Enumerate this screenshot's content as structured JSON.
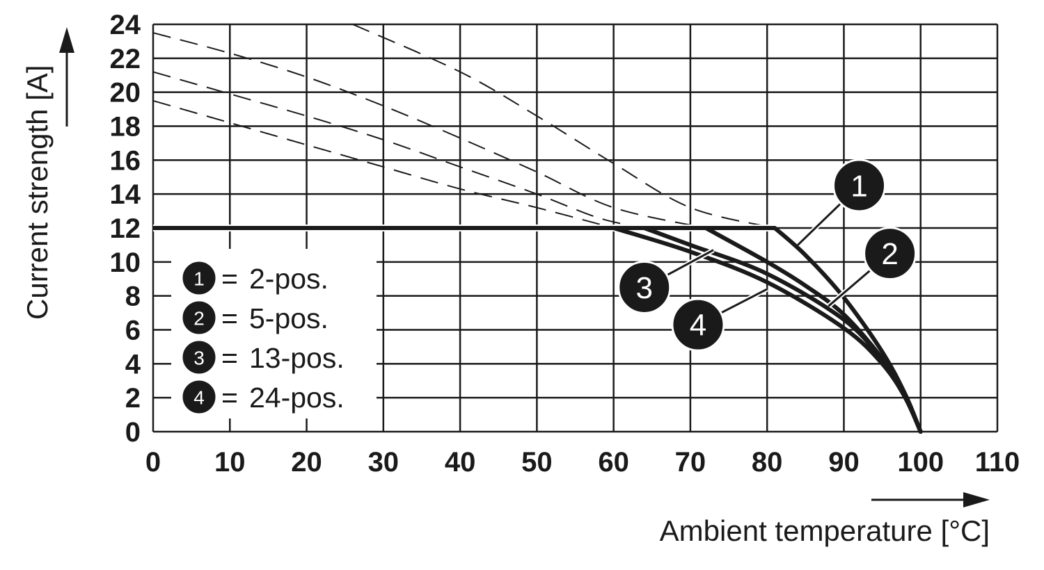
{
  "chart_data": {
    "type": "line",
    "xlabel": "Ambient temperature [°C]",
    "ylabel": "Current strength [A]",
    "xlim": [
      0,
      110
    ],
    "ylim": [
      0,
      24
    ],
    "x_ticks": [
      "0",
      "10",
      "20",
      "30",
      "40",
      "50",
      "60",
      "70",
      "80",
      "90",
      "100",
      "110"
    ],
    "y_ticks": [
      "0",
      "2",
      "4",
      "6",
      "8",
      "10",
      "12",
      "14",
      "16",
      "18",
      "20",
      "22",
      "24"
    ],
    "grid": true,
    "legend_position": "bottom-left",
    "colors": {
      "line": "#1a1a1a",
      "grid": "#1a1a1a",
      "badge": "#1a1a1a",
      "badge_text": "#ffffff"
    },
    "series": [
      {
        "id": "1",
        "name": "2-pos.",
        "equals": "=",
        "values": [
          [
            81,
            12
          ],
          [
            85,
            10.4
          ],
          [
            90,
            7.9
          ],
          [
            95,
            4.7
          ],
          [
            98,
            2.2
          ],
          [
            100,
            0
          ]
        ],
        "derating_dashed": [
          [
            26,
            24
          ],
          [
            40,
            21.2
          ],
          [
            50,
            18.6
          ],
          [
            60,
            15.8
          ],
          [
            70,
            13.2
          ],
          [
            81,
            12
          ]
        ]
      },
      {
        "id": "2",
        "name": "5-pos.",
        "equals": "=",
        "values": [
          [
            72,
            12
          ],
          [
            80,
            10.0
          ],
          [
            85,
            8.6
          ],
          [
            90,
            6.9
          ],
          [
            95,
            4.3
          ],
          [
            98,
            2.1
          ],
          [
            100,
            0
          ]
        ],
        "derating_dashed": [
          [
            0,
            23.5
          ],
          [
            10,
            22.3
          ],
          [
            20,
            20.9
          ],
          [
            30,
            19.2
          ],
          [
            40,
            17.3
          ],
          [
            50,
            15.3
          ],
          [
            60,
            13.2
          ],
          [
            72,
            12
          ]
        ]
      },
      {
        "id": "3",
        "name": "13-pos.",
        "equals": "=",
        "values": [
          [
            64,
            12
          ],
          [
            70,
            11.0
          ],
          [
            80,
            9.3
          ],
          [
            90,
            6.6
          ],
          [
            95,
            4.2
          ],
          [
            98,
            2.0
          ],
          [
            100,
            0
          ]
        ],
        "derating_dashed": [
          [
            0,
            21.2
          ],
          [
            10,
            19.9
          ],
          [
            20,
            18.6
          ],
          [
            30,
            17.2
          ],
          [
            40,
            15.6
          ],
          [
            50,
            14.0
          ],
          [
            58,
            12.6
          ],
          [
            64,
            12
          ]
        ]
      },
      {
        "id": "4",
        "name": "24-pos.",
        "equals": "=",
        "values": [
          [
            60,
            12
          ],
          [
            70,
            10.6
          ],
          [
            80,
            8.8
          ],
          [
            90,
            6.1
          ],
          [
            95,
            4.0
          ],
          [
            98,
            2.0
          ],
          [
            100,
            0
          ]
        ],
        "derating_dashed": [
          [
            0,
            19.5
          ],
          [
            10,
            18.2
          ],
          [
            20,
            16.9
          ],
          [
            30,
            15.6
          ],
          [
            40,
            14.3
          ],
          [
            50,
            13.2
          ],
          [
            60,
            12
          ]
        ]
      }
    ],
    "annotations": [
      {
        "label": "1",
        "at": [
          92,
          14.5
        ],
        "points_to": [
          84,
          11.0
        ]
      },
      {
        "label": "2",
        "at": [
          96,
          10.5
        ],
        "points_to": [
          88,
          7.4
        ]
      },
      {
        "label": "3",
        "at": [
          64,
          8.5
        ],
        "points_to": [
          73,
          10.7
        ]
      },
      {
        "label": "4",
        "at": [
          71,
          6.3
        ],
        "points_to": [
          80,
          8.4
        ]
      }
    ]
  }
}
